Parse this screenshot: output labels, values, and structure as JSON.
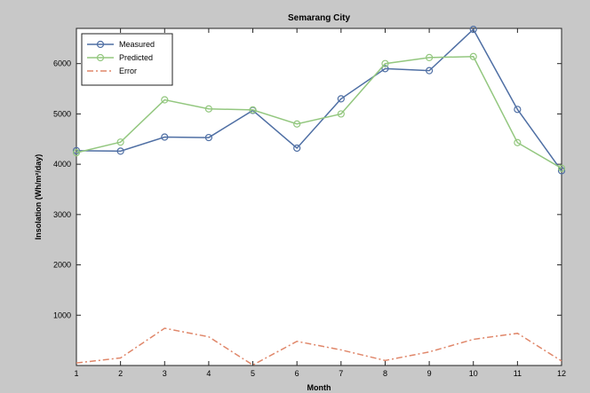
{
  "chart_data": {
    "type": "line",
    "title": "Semarang City",
    "xlabel": "Month",
    "ylabel": "Insolation (Wh/m²/day)",
    "xlim": [
      1,
      12
    ],
    "ylim": [
      0,
      6700
    ],
    "xticks": [
      "1",
      "2",
      "3",
      "4",
      "5",
      "6",
      "7",
      "8",
      "9",
      "10",
      "11",
      "12"
    ],
    "yticks": [
      "1000",
      "2000",
      "3000",
      "4000",
      "5000",
      "6000"
    ],
    "x": [
      1,
      2,
      3,
      4,
      5,
      6,
      7,
      8,
      9,
      10,
      11,
      12
    ],
    "legend_position": "top-left",
    "grid": false,
    "series": [
      {
        "name": "Measured",
        "color": "#4f6fa4",
        "marker": "circle",
        "style": "solid",
        "values": [
          4270,
          4260,
          4540,
          4530,
          5070,
          4320,
          5300,
          5900,
          5860,
          6680,
          5090,
          3870
        ]
      },
      {
        "name": "Predicted",
        "color": "#93c77f",
        "marker": "circle",
        "style": "solid",
        "values": [
          4230,
          4440,
          5280,
          5100,
          5080,
          4800,
          5000,
          6000,
          6120,
          6140,
          4430,
          3920
        ]
      },
      {
        "name": "Error",
        "color": "#e0876a",
        "marker": "none",
        "style": "dashdot",
        "values": [
          50,
          150,
          740,
          570,
          10,
          480,
          310,
          100,
          270,
          520,
          640,
          90
        ]
      }
    ]
  }
}
